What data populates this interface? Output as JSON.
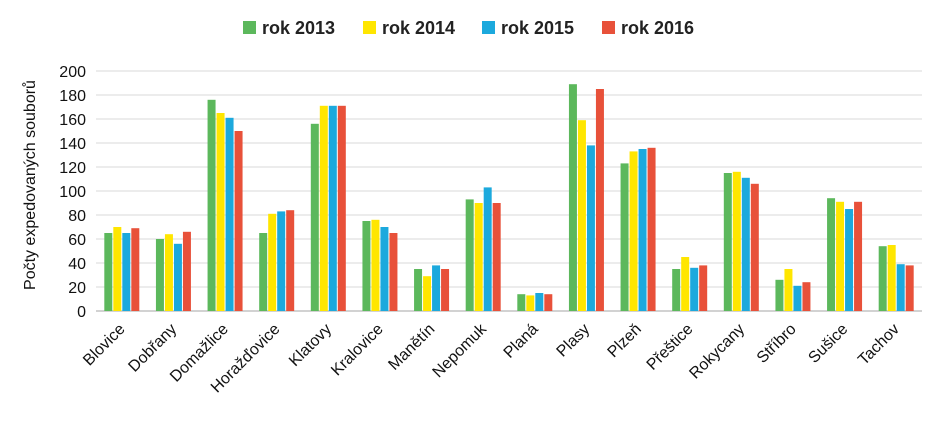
{
  "chart_data": {
    "type": "bar",
    "title": "",
    "xlabel": "",
    "ylabel": "Počty expedovaných souborů",
    "ylim": [
      0,
      200
    ],
    "yticks": [
      0,
      20,
      40,
      60,
      80,
      100,
      120,
      140,
      160,
      180,
      200
    ],
    "grid": true,
    "legend_position": "top",
    "categories": [
      "Blovice",
      "Dobřany",
      "Domažlice",
      "Horažďovice",
      "Klatovy",
      "Kralovice",
      "Manětín",
      "Nepomuk",
      "Planá",
      "Plasy",
      "Plzeň",
      "Přeštice",
      "Rokycany",
      "Stříbro",
      "Sušice",
      "Tachov"
    ],
    "series": [
      {
        "name": "rok 2013",
        "color": "#5cb85c",
        "values": [
          65,
          60,
          176,
          65,
          156,
          75,
          35,
          93,
          14,
          189,
          123,
          35,
          115,
          26,
          94,
          54
        ]
      },
      {
        "name": "rok 2014",
        "color": "#ffe600",
        "values": [
          70,
          64,
          165,
          81,
          171,
          76,
          29,
          90,
          13,
          159,
          133,
          45,
          116,
          35,
          91,
          55
        ]
      },
      {
        "name": "rok 2015",
        "color": "#1ca9dd",
        "values": [
          65,
          56,
          161,
          83,
          171,
          70,
          38,
          103,
          15,
          138,
          135,
          36,
          111,
          21,
          85,
          39
        ]
      },
      {
        "name": "rok 2016",
        "color": "#e8513a",
        "values": [
          69,
          66,
          150,
          84,
          171,
          65,
          35,
          90,
          14,
          185,
          136,
          38,
          106,
          24,
          91,
          38
        ]
      }
    ]
  }
}
